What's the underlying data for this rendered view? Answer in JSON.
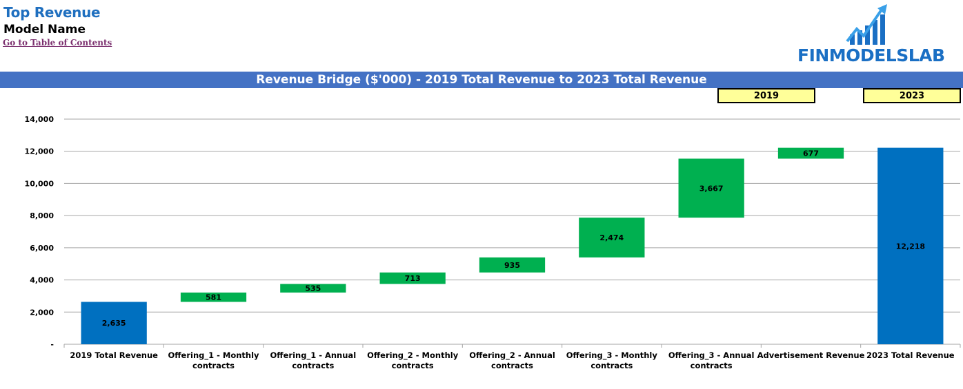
{
  "header": {
    "title": "Top Revenue",
    "subtitle": "Model Name",
    "toc_link": "Go to Table of Contents",
    "logo_text": "FINMODELSLAB"
  },
  "banner": {
    "title": "Revenue Bridge ($'000) - 2019 Total Revenue to 2023 Total Revenue"
  },
  "year_boxes": {
    "start": "2019",
    "end": "2023"
  },
  "colors": {
    "brand_blue": "#1f6fbf",
    "banner_blue": "#4472c4",
    "total_bar": "#0070c0",
    "increase_bar": "#00b050",
    "year_box_fill": "#ffff99",
    "link": "#7b2f6e"
  },
  "chart_data": {
    "type": "bar",
    "subtype": "waterfall",
    "title": "Revenue Bridge ($'000) - 2019 Total Revenue to 2023 Total Revenue",
    "ylim": [
      0,
      14000
    ],
    "yticks": [
      0,
      2000,
      4000,
      6000,
      8000,
      10000,
      12000,
      14000
    ],
    "ytick_labels": [
      "-",
      "2,000",
      "4,000",
      "6,000",
      "8,000",
      "10,000",
      "12,000",
      "14,000"
    ],
    "grid": true,
    "categories": [
      [
        "2019 Total Revenue"
      ],
      [
        "Offering_1 - Monthly",
        "contracts"
      ],
      [
        "Offering_1 - Annual",
        "contracts"
      ],
      [
        "Offering_2 - Monthly",
        "contracts"
      ],
      [
        "Offering_2 - Annual",
        "contracts"
      ],
      [
        "Offering_3 - Monthly",
        "contracts"
      ],
      [
        "Offering_3 - Annual",
        "contracts"
      ],
      [
        "Advertisement Revenue"
      ],
      [
        "2023 Total Revenue"
      ]
    ],
    "values": [
      2635,
      581,
      535,
      713,
      935,
      2474,
      3667,
      677,
      12218
    ],
    "labels": [
      "2,635",
      "581",
      "535",
      "713",
      "935",
      "2,474",
      "3,667",
      "677",
      "12,218"
    ],
    "kinds": [
      "total",
      "increase",
      "increase",
      "increase",
      "increase",
      "increase",
      "increase",
      "increase",
      "total"
    ]
  }
}
